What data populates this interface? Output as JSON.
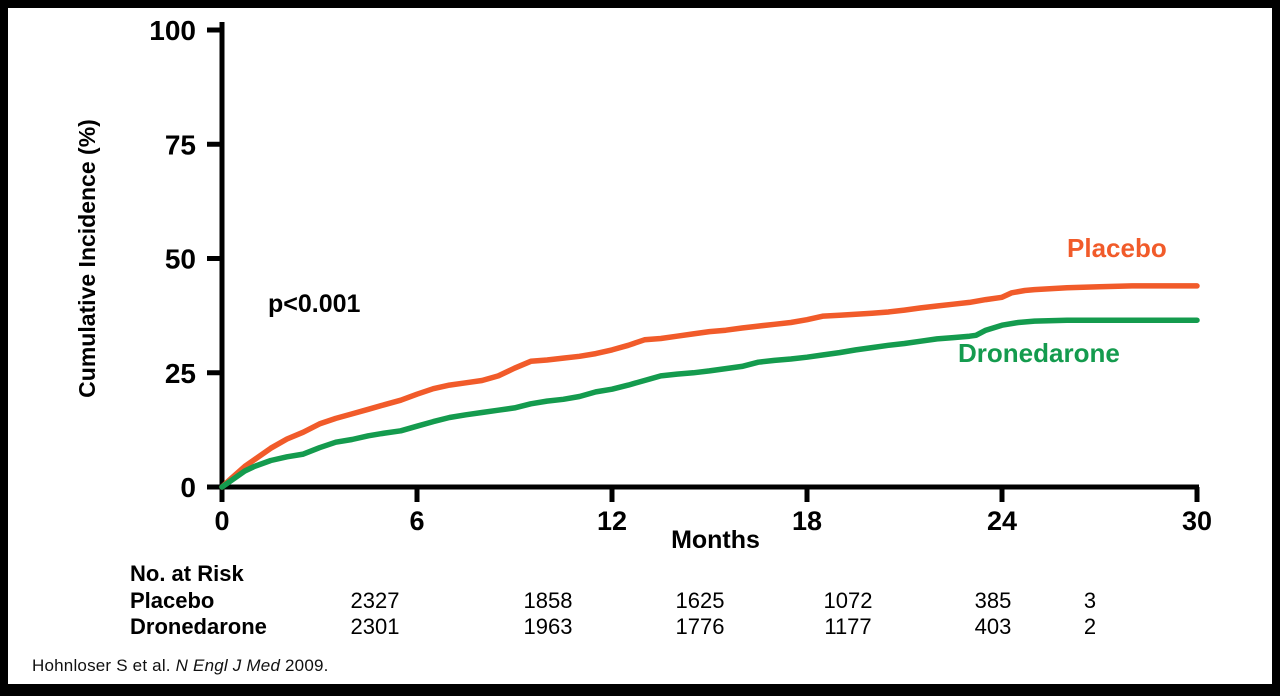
{
  "chart_data": {
    "type": "line",
    "title": "",
    "xlabel": "Months",
    "ylabel": "Cumulative Incidence (%)",
    "xlim": [
      0,
      30
    ],
    "ylim": [
      0,
      100
    ],
    "x_ticks": [
      0,
      6,
      12,
      18,
      24,
      30
    ],
    "y_ticks": [
      0,
      25,
      50,
      75,
      100
    ],
    "grid": false,
    "annotation": "p<0.001",
    "legend_position": "labels-at-curve-ends",
    "axis_color": "#000000",
    "series": [
      {
        "name": "Placebo",
        "color": "#F15B2A",
        "points": [
          [
            0,
            0
          ],
          [
            0.3,
            2
          ],
          [
            0.7,
            4.5
          ],
          [
            1,
            6
          ],
          [
            1.5,
            8.5
          ],
          [
            2,
            10.5
          ],
          [
            2.5,
            12
          ],
          [
            3,
            13.8
          ],
          [
            3.5,
            15
          ],
          [
            4,
            16
          ],
          [
            4.5,
            17
          ],
          [
            5,
            18
          ],
          [
            5.5,
            19
          ],
          [
            6,
            20.3
          ],
          [
            6.5,
            21.5
          ],
          [
            7,
            22.3
          ],
          [
            7.5,
            22.8
          ],
          [
            8,
            23.3
          ],
          [
            8.5,
            24.3
          ],
          [
            9,
            26
          ],
          [
            9.5,
            27.5
          ],
          [
            10,
            27.8
          ],
          [
            10.5,
            28.2
          ],
          [
            11,
            28.6
          ],
          [
            11.5,
            29.2
          ],
          [
            12,
            30
          ],
          [
            12.5,
            31
          ],
          [
            13,
            32.2
          ],
          [
            13.5,
            32.5
          ],
          [
            14,
            33
          ],
          [
            14.5,
            33.5
          ],
          [
            15,
            34
          ],
          [
            15.5,
            34.3
          ],
          [
            16,
            34.8
          ],
          [
            16.5,
            35.2
          ],
          [
            17,
            35.6
          ],
          [
            17.5,
            36
          ],
          [
            18,
            36.6
          ],
          [
            18.5,
            37.4
          ],
          [
            19,
            37.6
          ],
          [
            19.5,
            37.8
          ],
          [
            20,
            38
          ],
          [
            20.5,
            38.3
          ],
          [
            21,
            38.7
          ],
          [
            21.5,
            39.2
          ],
          [
            22,
            39.6
          ],
          [
            22.5,
            40
          ],
          [
            23,
            40.4
          ],
          [
            23.5,
            41
          ],
          [
            24,
            41.5
          ],
          [
            24.3,
            42.5
          ],
          [
            24.7,
            43
          ],
          [
            25,
            43.2
          ],
          [
            26,
            43.6
          ],
          [
            27,
            43.8
          ],
          [
            28,
            44
          ],
          [
            29,
            44
          ],
          [
            30,
            44
          ]
        ]
      },
      {
        "name": "Dronedarone",
        "color": "#149B4E",
        "points": [
          [
            0,
            0
          ],
          [
            0.3,
            1.5
          ],
          [
            0.7,
            3.5
          ],
          [
            1,
            4.5
          ],
          [
            1.5,
            5.8
          ],
          [
            2,
            6.6
          ],
          [
            2.5,
            7.2
          ],
          [
            3,
            8.6
          ],
          [
            3.5,
            9.8
          ],
          [
            4,
            10.4
          ],
          [
            4.5,
            11.2
          ],
          [
            5,
            11.8
          ],
          [
            5.5,
            12.3
          ],
          [
            6,
            13.3
          ],
          [
            6.5,
            14.3
          ],
          [
            7,
            15.2
          ],
          [
            7.5,
            15.8
          ],
          [
            8,
            16.3
          ],
          [
            8.5,
            16.8
          ],
          [
            9,
            17.3
          ],
          [
            9.5,
            18.2
          ],
          [
            10,
            18.8
          ],
          [
            10.5,
            19.2
          ],
          [
            11,
            19.8
          ],
          [
            11.5,
            20.8
          ],
          [
            12,
            21.4
          ],
          [
            12.5,
            22.3
          ],
          [
            13,
            23.3
          ],
          [
            13.5,
            24.3
          ],
          [
            14,
            24.7
          ],
          [
            14.5,
            25
          ],
          [
            15,
            25.4
          ],
          [
            15.5,
            25.9
          ],
          [
            16,
            26.4
          ],
          [
            16.5,
            27.3
          ],
          [
            17,
            27.7
          ],
          [
            17.5,
            28
          ],
          [
            18,
            28.4
          ],
          [
            18.5,
            28.9
          ],
          [
            19,
            29.4
          ],
          [
            19.5,
            30
          ],
          [
            20,
            30.5
          ],
          [
            20.5,
            31
          ],
          [
            21,
            31.4
          ],
          [
            21.5,
            31.9
          ],
          [
            22,
            32.4
          ],
          [
            22.5,
            32.7
          ],
          [
            23,
            33
          ],
          [
            23.2,
            33.2
          ],
          [
            23.5,
            34.3
          ],
          [
            24,
            35.4
          ],
          [
            24.5,
            36
          ],
          [
            25,
            36.3
          ],
          [
            26,
            36.5
          ],
          [
            27,
            36.5
          ],
          [
            28,
            36.5
          ],
          [
            29,
            36.5
          ],
          [
            30,
            36.5
          ]
        ]
      }
    ]
  },
  "risk_table": {
    "header": "No. at Risk",
    "rows": [
      {
        "label": "Placebo",
        "values": [
          "2327",
          "1858",
          "1625",
          "1072",
          "385",
          "3"
        ]
      },
      {
        "label": "Dronedarone",
        "values": [
          "2301",
          "1963",
          "1776",
          "1177",
          "403",
          "2"
        ]
      }
    ]
  },
  "citation": {
    "prefix": "Hohnloser S et al. ",
    "journal": "N Engl J Med",
    "suffix": " 2009."
  }
}
